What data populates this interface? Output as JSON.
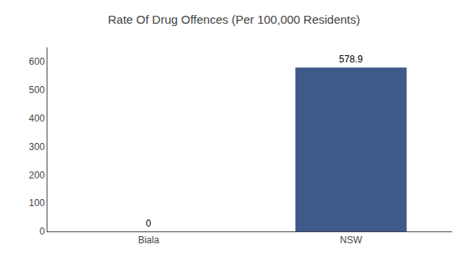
{
  "chart_data": {
    "type": "bar",
    "title": "Rate Of Drug Offences (Per 100,000 Residents)",
    "categories": [
      "Biala",
      "NSW"
    ],
    "values": [
      0,
      578.9
    ],
    "color": "#3d5a8a",
    "ylim": [
      0,
      650
    ],
    "yticks": [
      0,
      100,
      200,
      300,
      400,
      500,
      600
    ],
    "grid": false,
    "data_labels": true
  }
}
